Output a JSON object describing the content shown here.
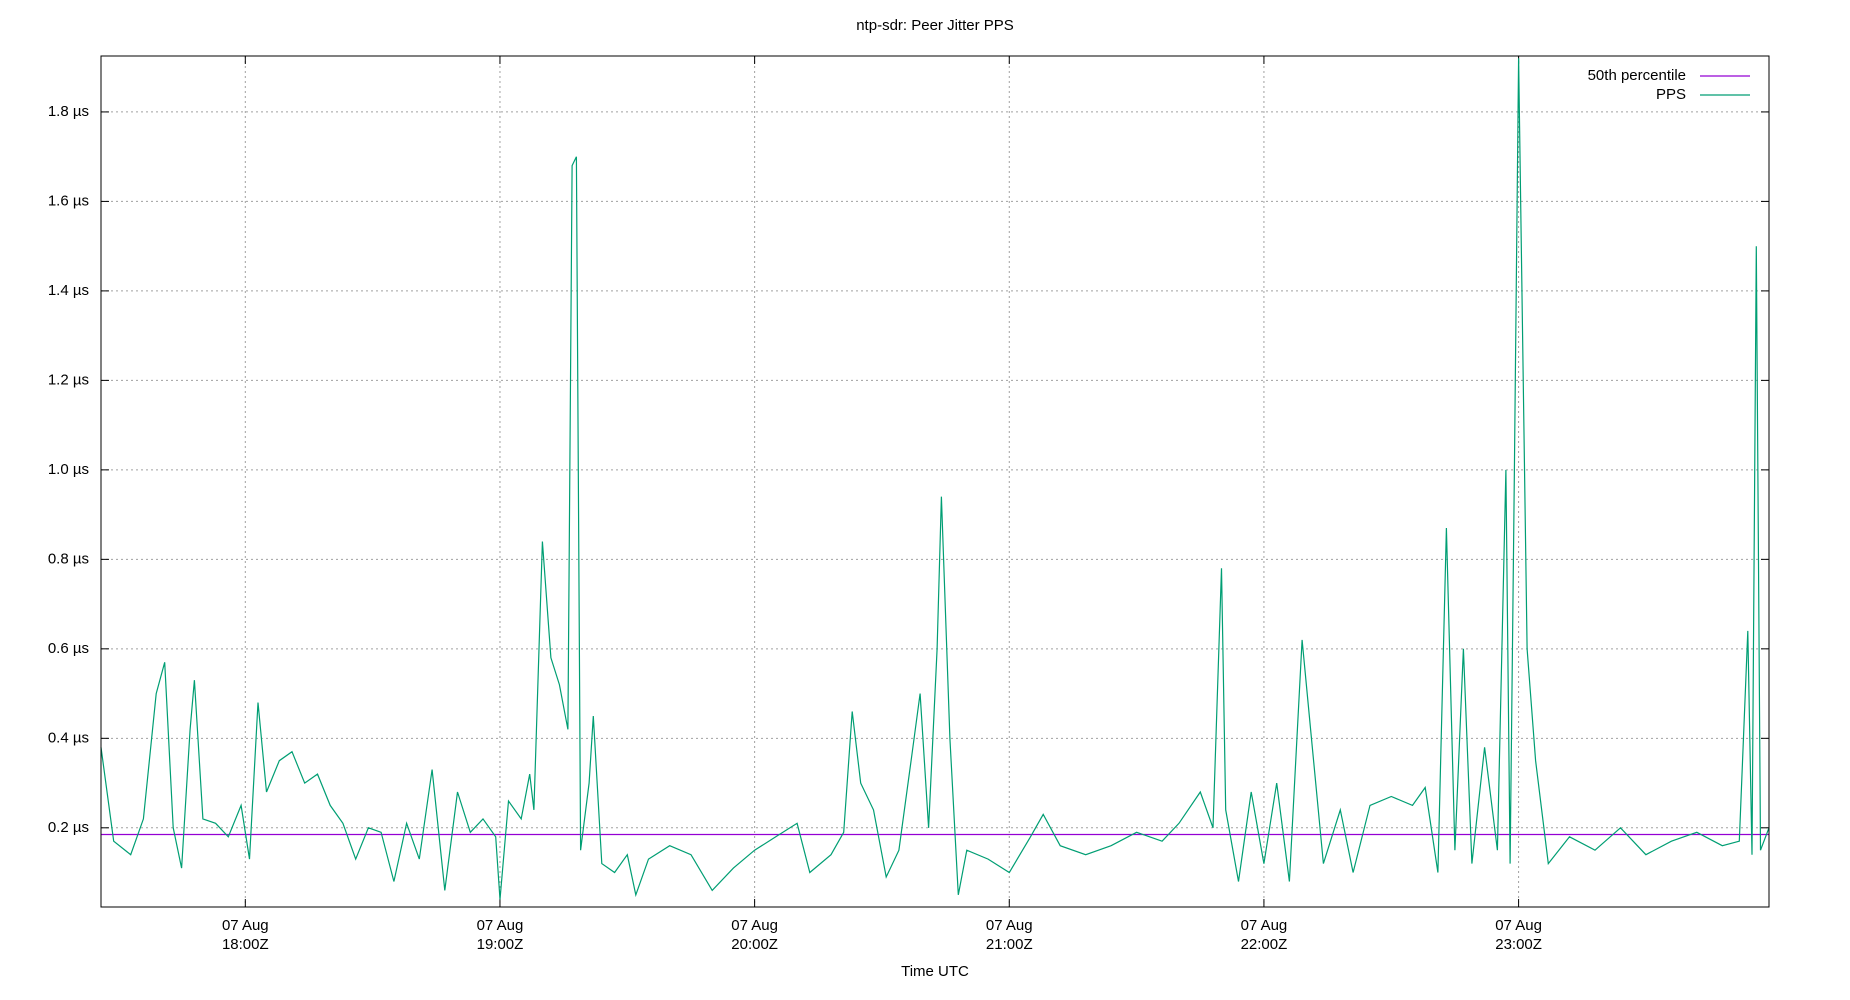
{
  "chart_data": {
    "type": "line",
    "title": "ntp-sdr: Peer Jitter PPS",
    "xlabel": "Time UTC",
    "xlim": [
      "17:26",
      "23:59"
    ],
    "xticks": [
      {
        "value": "18:00",
        "label": [
          "07 Aug",
          "18:00Z"
        ]
      },
      {
        "value": "19:00",
        "label": [
          "07 Aug",
          "19:00Z"
        ]
      },
      {
        "value": "20:00",
        "label": [
          "07 Aug",
          "20:00Z"
        ]
      },
      {
        "value": "21:00",
        "label": [
          "07 Aug",
          "21:00Z"
        ]
      },
      {
        "value": "22:00",
        "label": [
          "07 Aug",
          "22:00Z"
        ]
      },
      {
        "value": "23:00",
        "label": [
          "07 Aug",
          "23:00Z"
        ]
      }
    ],
    "ylim": [
      0.023,
      1.925
    ],
    "yticks": [
      {
        "value": 0.2,
        "label": "0.2 µs"
      },
      {
        "value": 0.4,
        "label": "0.4 µs"
      },
      {
        "value": 0.6,
        "label": "0.6 µs"
      },
      {
        "value": 0.8,
        "label": "0.8 µs"
      },
      {
        "value": 1.0,
        "label": "1.0 µs"
      },
      {
        "value": 1.2,
        "label": "1.2 µs"
      },
      {
        "value": 1.4,
        "label": "1.4 µs"
      },
      {
        "value": 1.6,
        "label": "1.6 µs"
      },
      {
        "value": 1.8,
        "label": "1.8 µs"
      }
    ],
    "grid": true,
    "legend": "top-right",
    "series": [
      {
        "name": "50th percentile",
        "color": "#9400d3",
        "x": [
          "17:26",
          "23:59"
        ],
        "values": [
          0.185,
          0.185
        ]
      },
      {
        "name": "PPS",
        "color": "#009e73",
        "x": [
          "17:26",
          "17:29",
          "17:33",
          "17:36",
          "17:39",
          "17:41",
          "17:43",
          "17:45",
          "17:47",
          "17:48",
          "17:50",
          "17:53",
          "17:56",
          "17:59",
          "18:01",
          "18:03",
          "18:05",
          "18:08",
          "18:11",
          "18:14",
          "18:17",
          "18:20",
          "18:23",
          "18:26",
          "18:29",
          "18:32",
          "18:35",
          "18:38",
          "18:41",
          "18:44",
          "18:47",
          "18:50",
          "18:53",
          "18:56",
          "18:59",
          "19:00",
          "19:02",
          "19:05",
          "19:07",
          "19:08",
          "19:10",
          "19:12",
          "19:14",
          "19:16",
          "19:17",
          "19:18",
          "19:19",
          "19:21",
          "19:22",
          "19:24",
          "19:27",
          "19:30",
          "19:32",
          "19:35",
          "19:40",
          "19:45",
          "19:50",
          "19:55",
          "20:00",
          "20:05",
          "20:10",
          "20:13",
          "20:18",
          "20:21",
          "20:23",
          "20:25",
          "20:28",
          "20:31",
          "20:34",
          "20:37",
          "20:39",
          "20:41",
          "20:43",
          "20:44",
          "20:46",
          "20:48",
          "20:50",
          "20:55",
          "21:00",
          "21:05",
          "21:08",
          "21:12",
          "21:18",
          "21:24",
          "21:30",
          "21:36",
          "21:40",
          "21:45",
          "21:48",
          "21:50",
          "21:51",
          "21:54",
          "21:57",
          "22:00",
          "22:03",
          "22:06",
          "22:09",
          "22:11",
          "22:14",
          "22:18",
          "22:21",
          "22:25",
          "22:30",
          "22:35",
          "22:38",
          "22:41",
          "22:43",
          "22:45",
          "22:47",
          "22:49",
          "22:52",
          "22:55",
          "22:57",
          "22:58",
          "22:59",
          "23:00",
          "23:02",
          "23:04",
          "23:07",
          "23:12",
          "23:18",
          "23:24",
          "23:30",
          "23:36",
          "23:42",
          "23:48",
          "23:52",
          "23:54",
          "23:55",
          "23:56",
          "23:57",
          "23:59"
        ],
        "values": [
          0.38,
          0.17,
          0.14,
          0.22,
          0.5,
          0.57,
          0.2,
          0.11,
          0.42,
          0.53,
          0.22,
          0.21,
          0.18,
          0.25,
          0.13,
          0.48,
          0.28,
          0.35,
          0.37,
          0.3,
          0.32,
          0.25,
          0.21,
          0.13,
          0.2,
          0.19,
          0.08,
          0.21,
          0.13,
          0.33,
          0.06,
          0.28,
          0.19,
          0.22,
          0.18,
          0.04,
          0.26,
          0.22,
          0.32,
          0.24,
          0.84,
          0.58,
          0.52,
          0.42,
          1.68,
          1.7,
          0.15,
          0.3,
          0.45,
          0.12,
          0.1,
          0.14,
          0.05,
          0.13,
          0.16,
          0.14,
          0.06,
          0.11,
          0.15,
          0.18,
          0.21,
          0.1,
          0.14,
          0.19,
          0.46,
          0.3,
          0.24,
          0.09,
          0.15,
          0.36,
          0.5,
          0.2,
          0.6,
          0.94,
          0.4,
          0.05,
          0.15,
          0.13,
          0.1,
          0.18,
          0.23,
          0.16,
          0.14,
          0.16,
          0.19,
          0.17,
          0.21,
          0.28,
          0.2,
          0.78,
          0.24,
          0.08,
          0.28,
          0.12,
          0.3,
          0.08,
          0.62,
          0.42,
          0.12,
          0.24,
          0.1,
          0.25,
          0.27,
          0.25,
          0.29,
          0.1,
          0.87,
          0.15,
          0.6,
          0.12,
          0.38,
          0.15,
          1.0,
          0.12,
          0.98,
          1.92,
          0.6,
          0.35,
          0.12,
          0.18,
          0.15,
          0.2,
          0.14,
          0.17,
          0.19,
          0.16,
          0.17,
          0.64,
          0.14,
          1.5,
          0.15,
          0.2
        ]
      }
    ]
  }
}
